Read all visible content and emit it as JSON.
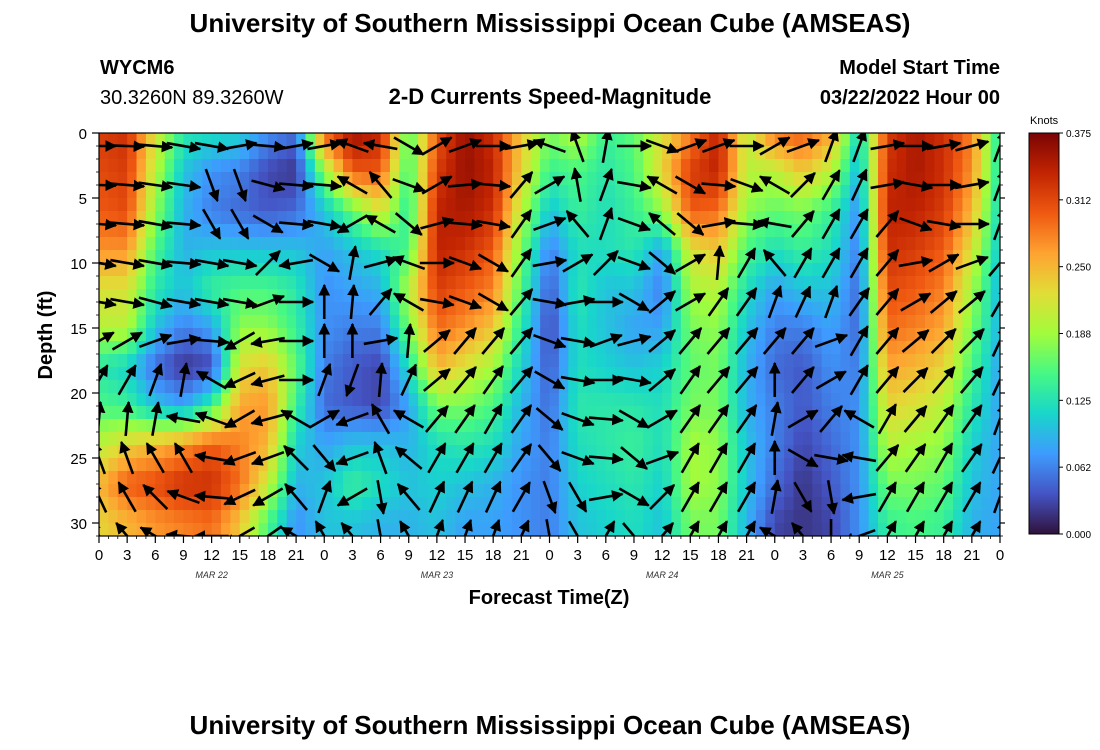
{
  "page": {
    "title": "University of Southern Mississippi Ocean Cube (AMSEAS)",
    "title_repeat": "University of Southern Mississippi Ocean Cube (AMSEAS)",
    "station_id": "WYCM6",
    "coords": "30.3260N  89.3260W",
    "subtitle": "2-D Currents Speed-Magnitude",
    "start_label": "Model Start Time",
    "start_value": "03/22/2022 Hour 00"
  },
  "chart_data": {
    "type": "heatmap",
    "title": "2-D Currents Speed-Magnitude",
    "xlabel": "Forecast Time(Z)",
    "ylabel": "Depth (ft)",
    "x_tick_labels": [
      "0",
      "3",
      "6",
      "9",
      "12",
      "15",
      "18",
      "21",
      "0",
      "3",
      "6",
      "9",
      "12",
      "15",
      "18",
      "21",
      "0",
      "3",
      "6",
      "9",
      "12",
      "15",
      "18",
      "21",
      "0",
      "3",
      "6",
      "9",
      "12",
      "15",
      "18",
      "21",
      "0"
    ],
    "x_range_hours": [
      0,
      96
    ],
    "date_labels": [
      "MAR 22",
      "MAR 23",
      "MAR 24",
      "MAR 25"
    ],
    "y_ticks": [
      "0",
      "5",
      "10",
      "15",
      "20",
      "25",
      "30"
    ],
    "y_range": [
      0,
      31
    ],
    "depths": [
      0,
      3,
      6,
      9,
      12,
      15,
      18,
      21,
      24,
      27,
      30
    ],
    "colorbar": {
      "unit": "Knots",
      "ticks": [
        "0.000",
        "0.062",
        "0.125",
        "0.188",
        "0.250",
        "0.312",
        "0.375"
      ],
      "range": [
        0,
        0.375
      ]
    },
    "colormap": [
      "#30123b",
      "#4454c4",
      "#3e9bfe",
      "#18d6cb",
      "#46f884",
      "#a2fc3c",
      "#e1dd37",
      "#fea331",
      "#ef5911",
      "#c22402",
      "#7a0403"
    ],
    "speed_columns": [
      {
        "hour": 0,
        "speeds": [
          0.32,
          0.31,
          0.3,
          0.27,
          0.22,
          0.2,
          0.13,
          0.15,
          0.2,
          0.25,
          0.23
        ]
      },
      {
        "hour": 3,
        "speeds": [
          0.33,
          0.32,
          0.31,
          0.27,
          0.22,
          0.2,
          0.11,
          0.14,
          0.23,
          0.3,
          0.25
        ]
      },
      {
        "hour": 6,
        "speeds": [
          0.22,
          0.2,
          0.18,
          0.15,
          0.13,
          0.1,
          0.05,
          0.1,
          0.25,
          0.31,
          0.27
        ]
      },
      {
        "hour": 9,
        "speeds": [
          0.13,
          0.1,
          0.09,
          0.09,
          0.1,
          0.06,
          0.02,
          0.08,
          0.27,
          0.33,
          0.28
        ]
      },
      {
        "hour": 12,
        "speeds": [
          0.12,
          0.07,
          0.06,
          0.1,
          0.14,
          0.08,
          0.03,
          0.14,
          0.3,
          0.33,
          0.29
        ]
      },
      {
        "hour": 15,
        "speeds": [
          0.11,
          0.06,
          0.05,
          0.1,
          0.15,
          0.18,
          0.22,
          0.26,
          0.28,
          0.29,
          0.24
        ]
      },
      {
        "hour": 18,
        "speeds": [
          0.07,
          0.03,
          0.04,
          0.1,
          0.15,
          0.18,
          0.24,
          0.27,
          0.25,
          0.21,
          0.15
        ]
      },
      {
        "hour": 21,
        "speeds": [
          0.05,
          0.02,
          0.05,
          0.1,
          0.13,
          0.14,
          0.16,
          0.14,
          0.11,
          0.09,
          0.07
        ]
      },
      {
        "hour": 24,
        "speeds": [
          0.3,
          0.18,
          0.1,
          0.08,
          0.07,
          0.07,
          0.06,
          0.05,
          0.08,
          0.1,
          0.1
        ]
      },
      {
        "hour": 27,
        "speeds": [
          0.36,
          0.3,
          0.16,
          0.1,
          0.08,
          0.06,
          0.04,
          0.04,
          0.1,
          0.14,
          0.1
        ]
      },
      {
        "hour": 30,
        "speeds": [
          0.34,
          0.3,
          0.22,
          0.12,
          0.09,
          0.06,
          0.03,
          0.03,
          0.1,
          0.12,
          0.09
        ]
      },
      {
        "hour": 33,
        "speeds": [
          0.15,
          0.14,
          0.13,
          0.15,
          0.2,
          0.17,
          0.12,
          0.08,
          0.09,
          0.1,
          0.09
        ]
      },
      {
        "hour": 36,
        "speeds": [
          0.3,
          0.32,
          0.34,
          0.34,
          0.32,
          0.29,
          0.25,
          0.17,
          0.12,
          0.11,
          0.1
        ]
      },
      {
        "hour": 39,
        "speeds": [
          0.36,
          0.36,
          0.35,
          0.33,
          0.3,
          0.27,
          0.22,
          0.17,
          0.13,
          0.1,
          0.08
        ]
      },
      {
        "hour": 42,
        "speeds": [
          0.33,
          0.34,
          0.33,
          0.3,
          0.28,
          0.24,
          0.19,
          0.15,
          0.12,
          0.09,
          0.08
        ]
      },
      {
        "hour": 45,
        "speeds": [
          0.24,
          0.23,
          0.2,
          0.17,
          0.15,
          0.13,
          0.11,
          0.09,
          0.08,
          0.07,
          0.07
        ]
      },
      {
        "hour": 48,
        "speeds": [
          0.17,
          0.14,
          0.1,
          0.06,
          0.04,
          0.03,
          0.04,
          0.05,
          0.06,
          0.06,
          0.06
        ]
      },
      {
        "hour": 51,
        "speeds": [
          0.2,
          0.15,
          0.14,
          0.12,
          0.13,
          0.12,
          0.12,
          0.13,
          0.12,
          0.11,
          0.1
        ]
      },
      {
        "hour": 54,
        "speeds": [
          0.14,
          0.13,
          0.12,
          0.12,
          0.1,
          0.1,
          0.11,
          0.13,
          0.13,
          0.12,
          0.11
        ]
      },
      {
        "hour": 57,
        "speeds": [
          0.16,
          0.15,
          0.14,
          0.13,
          0.1,
          0.08,
          0.1,
          0.13,
          0.14,
          0.13,
          0.12
        ]
      },
      {
        "hour": 60,
        "speeds": [
          0.22,
          0.23,
          0.18,
          0.08,
          0.06,
          0.08,
          0.11,
          0.12,
          0.12,
          0.11,
          0.1
        ]
      },
      {
        "hour": 63,
        "speeds": [
          0.28,
          0.32,
          0.3,
          0.22,
          0.19,
          0.17,
          0.16,
          0.17,
          0.19,
          0.19,
          0.17
        ]
      },
      {
        "hour": 66,
        "speeds": [
          0.34,
          0.34,
          0.29,
          0.24,
          0.2,
          0.18,
          0.17,
          0.17,
          0.18,
          0.18,
          0.17
        ]
      },
      {
        "hour": 69,
        "speeds": [
          0.2,
          0.2,
          0.18,
          0.15,
          0.12,
          0.1,
          0.09,
          0.09,
          0.1,
          0.1,
          0.09
        ]
      },
      {
        "hour": 72,
        "speeds": [
          0.29,
          0.2,
          0.16,
          0.12,
          0.08,
          0.06,
          0.05,
          0.06,
          0.06,
          0.05,
          0.03
        ]
      },
      {
        "hour": 75,
        "speeds": [
          0.3,
          0.24,
          0.17,
          0.14,
          0.1,
          0.06,
          0.04,
          0.04,
          0.03,
          0.02,
          0.02
        ]
      },
      {
        "hour": 78,
        "speeds": [
          0.26,
          0.2,
          0.14,
          0.12,
          0.1,
          0.08,
          0.07,
          0.06,
          0.05,
          0.04,
          0.03
        ]
      },
      {
        "hour": 81,
        "speeds": [
          0.11,
          0.09,
          0.07,
          0.06,
          0.05,
          0.05,
          0.06,
          0.07,
          0.07,
          0.07,
          0.07
        ]
      },
      {
        "hour": 84,
        "speeds": [
          0.32,
          0.33,
          0.34,
          0.33,
          0.31,
          0.29,
          0.26,
          0.23,
          0.2,
          0.17,
          0.14
        ]
      },
      {
        "hour": 87,
        "speeds": [
          0.35,
          0.35,
          0.34,
          0.32,
          0.3,
          0.28,
          0.25,
          0.22,
          0.19,
          0.17,
          0.15
        ]
      },
      {
        "hour": 90,
        "speeds": [
          0.33,
          0.33,
          0.32,
          0.3,
          0.28,
          0.26,
          0.23,
          0.2,
          0.18,
          0.16,
          0.14
        ]
      },
      {
        "hour": 93,
        "speeds": [
          0.28,
          0.27,
          0.25,
          0.22,
          0.19,
          0.17,
          0.15,
          0.13,
          0.11,
          0.1,
          0.09
        ]
      },
      {
        "hour": 96,
        "speeds": [
          0.12,
          0.12,
          0.11,
          0.1,
          0.09,
          0.09,
          0.08,
          0.08,
          0.08,
          0.08,
          0.08
        ]
      }
    ],
    "arrow_directions_deg": [
      [
        90,
        92,
        95,
        100,
        100,
        60,
        30,
        5,
        340,
        335,
        330
      ],
      [
        92,
        95,
        95,
        100,
        100,
        60,
        30,
        5,
        340,
        330,
        320
      ],
      [
        95,
        98,
        100,
        100,
        105,
        70,
        20,
        10,
        330,
        315,
        300
      ],
      [
        100,
        98,
        95,
        95,
        100,
        80,
        10,
        280,
        330,
        290,
        275
      ],
      [
        100,
        160,
        150,
        100,
        100,
        95,
        300,
        290,
        280,
        275,
        270
      ],
      [
        80,
        160,
        150,
        100,
        100,
        240,
        245,
        240,
        250,
        245,
        240
      ],
      [
        95,
        105,
        120,
        45,
        70,
        260,
        255,
        255,
        250,
        240,
        235
      ],
      [
        80,
        95,
        95,
        260,
        90,
        90,
        90,
        300,
        315,
        320,
        300
      ],
      [
        80,
        95,
        100,
        120,
        0,
        0,
        20,
        60,
        140,
        20,
        330
      ],
      [
        290,
        300,
        240,
        10,
        5,
        0,
        200,
        250,
        250,
        240,
        320
      ],
      [
        280,
        320,
        300,
        75,
        40,
        80,
        5,
        330,
        340,
        170,
        170
      ],
      [
        120,
        110,
        130,
        290,
        300,
        5,
        25,
        300,
        310,
        320,
        330
      ],
      [
        60,
        60,
        75,
        90,
        100,
        50,
        50,
        40,
        30,
        25,
        20
      ],
      [
        70,
        85,
        95,
        110,
        110,
        40,
        40,
        35,
        30,
        25,
        20
      ],
      [
        90,
        95,
        100,
        120,
        120,
        40,
        35,
        30,
        30,
        25,
        20
      ],
      [
        80,
        40,
        35,
        35,
        40,
        40,
        40,
        35,
        35,
        30,
        25
      ],
      [
        290,
        60,
        70,
        80,
        100,
        110,
        120,
        130,
        140,
        160,
        170
      ],
      [
        340,
        350,
        320,
        60,
        80,
        100,
        100,
        110,
        110,
        150,
        150
      ],
      [
        10,
        20,
        20,
        45,
        90,
        70,
        90,
        95,
        95,
        80,
        30
      ],
      [
        90,
        100,
        110,
        110,
        120,
        75,
        100,
        120,
        130,
        120,
        140
      ],
      [
        110,
        300,
        310,
        130,
        50,
        50,
        50,
        60,
        70,
        45,
        40
      ],
      [
        70,
        120,
        130,
        60,
        60,
        40,
        35,
        35,
        30,
        30,
        30
      ],
      [
        70,
        95,
        80,
        5,
        35,
        40,
        40,
        35,
        30,
        30,
        30
      ],
      [
        90,
        110,
        95,
        30,
        35,
        40,
        40,
        35,
        30,
        30,
        30
      ],
      [
        60,
        300,
        280,
        320,
        20,
        40,
        0,
        10,
        0,
        10,
        300
      ],
      [
        70,
        45,
        40,
        30,
        25,
        40,
        40,
        60,
        120,
        150,
        320
      ],
      [
        20,
        30,
        30,
        30,
        20,
        70,
        60,
        40,
        100,
        170,
        180
      ],
      [
        20,
        25,
        30,
        30,
        35,
        30,
        30,
        300,
        280,
        260,
        250
      ],
      [
        80,
        80,
        40,
        40,
        40,
        40,
        40,
        30,
        40,
        30,
        30
      ],
      [
        90,
        100,
        110,
        80,
        60,
        50,
        45,
        40,
        35,
        30,
        30
      ],
      [
        80,
        90,
        100,
        60,
        50,
        45,
        40,
        35,
        30,
        30,
        30
      ],
      [
        75,
        80,
        90,
        70,
        50,
        45,
        40,
        35,
        35,
        30,
        30
      ],
      [
        20,
        20,
        20,
        40,
        30,
        25,
        25,
        20,
        25,
        20,
        20
      ]
    ]
  }
}
